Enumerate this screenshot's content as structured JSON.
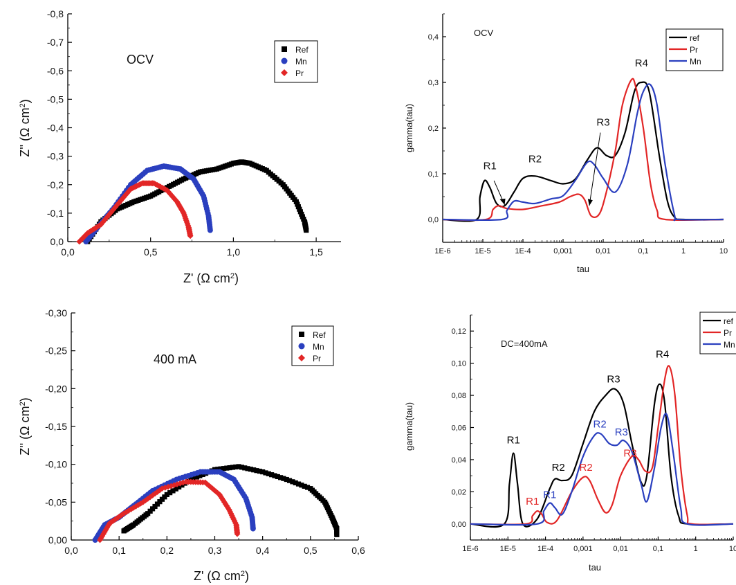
{
  "chart_data": [
    {
      "id": "nyquist_ocv",
      "type": "scatter",
      "annotation": "OCV",
      "xlabel": "Z' (Ω cm²)",
      "ylabel": "Z'' (Ω cm²)",
      "xlim": [
        0.0,
        1.65
      ],
      "ylim": [
        0.0,
        -0.8
      ],
      "x_ticks": [
        "0,0",
        "0,5",
        "1,0",
        "1,5"
      ],
      "y_ticks": [
        "0,0",
        "-0,1",
        "-0,2",
        "-0,3",
        "-0,4",
        "-0,5",
        "-0,6",
        "-0,7",
        "-0,8"
      ],
      "legend": {
        "position": "top-right"
      },
      "series": [
        {
          "name": "Ref",
          "marker": "square",
          "color": "#000000",
          "x": [
            0.12,
            0.2,
            0.3,
            0.4,
            0.5,
            0.6,
            0.7,
            0.8,
            0.9,
            1.0,
            1.05,
            1.1,
            1.2,
            1.3,
            1.38,
            1.43,
            1.44
          ],
          "y": [
            0,
            -0.07,
            -0.115,
            -0.14,
            -0.16,
            -0.19,
            -0.22,
            -0.245,
            -0.255,
            -0.275,
            -0.28,
            -0.275,
            -0.25,
            -0.2,
            -0.14,
            -0.07,
            -0.04
          ]
        },
        {
          "name": "Mn",
          "marker": "circle",
          "color": "#2a3fbf",
          "x": [
            0.11,
            0.18,
            0.28,
            0.38,
            0.48,
            0.58,
            0.68,
            0.76,
            0.82,
            0.85,
            0.86
          ],
          "y": [
            0,
            -0.05,
            -0.12,
            -0.2,
            -0.25,
            -0.265,
            -0.255,
            -0.22,
            -0.16,
            -0.09,
            -0.04
          ]
        },
        {
          "name": "Pr",
          "marker": "diamond",
          "color": "#e22626",
          "x": [
            0.07,
            0.12,
            0.2,
            0.3,
            0.38,
            0.45,
            0.52,
            0.6,
            0.66,
            0.7,
            0.73,
            0.74
          ],
          "y": [
            0,
            -0.03,
            -0.06,
            -0.13,
            -0.185,
            -0.205,
            -0.205,
            -0.18,
            -0.14,
            -0.1,
            -0.05,
            -0.02
          ]
        }
      ]
    },
    {
      "id": "drt_ocv",
      "type": "line",
      "annotation": "OCV",
      "xlabel": "tau",
      "ylabel": "gamma(tau)",
      "xscale": "log",
      "xlim": [
        1e-06,
        10
      ],
      "ylim": [
        -0.05,
        0.45
      ],
      "x_ticks": [
        "1E-6",
        "1E-5",
        "1E-4",
        "0,001",
        "0,01",
        "0,1",
        "1",
        "10"
      ],
      "y_ticks": [
        "0,0",
        "0,1",
        "0,2",
        "0,3",
        "0,4"
      ],
      "legend": {
        "position": "top-right"
      },
      "peak_labels": [
        {
          "text": "R1",
          "tau": 1.5e-05,
          "gamma": 0.11
        },
        {
          "text": "R2",
          "tau": 0.0002,
          "gamma": 0.125
        },
        {
          "text": "R3",
          "tau": 0.01,
          "gamma": 0.205
        },
        {
          "text": "R4",
          "tau": 0.09,
          "gamma": 0.335
        }
      ],
      "series": [
        {
          "name": "ref",
          "color": "#000000",
          "x": [
            1e-06,
            7e-06,
            8.5e-06,
            1.1e-05,
            1.5e-05,
            2.2e-05,
            3.5e-05,
            6e-05,
            0.0001,
            0.0002,
            0.0005,
            0.001,
            0.002,
            0.004,
            0.007,
            0.012,
            0.02,
            0.035,
            0.06,
            0.09,
            0.14,
            0.25,
            0.4,
            0.6,
            1,
            10
          ],
          "y": [
            0,
            0,
            0.05,
            0.085,
            0.07,
            0.035,
            0.03,
            0.06,
            0.09,
            0.095,
            0.085,
            0.078,
            0.088,
            0.13,
            0.157,
            0.14,
            0.14,
            0.19,
            0.28,
            0.3,
            0.28,
            0.14,
            0.04,
            0.005,
            0,
            0
          ]
        },
        {
          "name": "Pr",
          "color": "#e22626",
          "x": [
            1e-06,
            1.2e-05,
            1.8e-05,
            2.5e-05,
            4e-05,
            0.0001,
            0.0003,
            0.0008,
            0.0015,
            0.0025,
            0.0035,
            0.005,
            0.008,
            0.012,
            0.02,
            0.03,
            0.05,
            0.065,
            0.1,
            0.15,
            0.22,
            0.35,
            10
          ],
          "y": [
            0,
            0,
            0.022,
            0.03,
            0.024,
            0.022,
            0.03,
            0.038,
            0.05,
            0.055,
            0.042,
            0.008,
            0.012,
            0.06,
            0.15,
            0.25,
            0.305,
            0.29,
            0.2,
            0.08,
            0.02,
            0,
            0
          ]
        },
        {
          "name": "Mn",
          "color": "#2a3fbf",
          "x": [
            1e-06,
            3e-05,
            4e-05,
            6e-05,
            0.0001,
            0.0002,
            0.0005,
            0.001,
            0.002,
            0.004,
            0.006,
            0.01,
            0.02,
            0.04,
            0.07,
            0.1,
            0.15,
            0.22,
            0.35,
            0.6,
            0.75,
            10
          ],
          "y": [
            0,
            0,
            0.02,
            0.04,
            0.038,
            0.035,
            0.045,
            0.052,
            0.085,
            0.125,
            0.12,
            0.09,
            0.06,
            0.12,
            0.23,
            0.28,
            0.295,
            0.25,
            0.12,
            0.01,
            0,
            0
          ]
        }
      ]
    },
    {
      "id": "nyquist_400",
      "type": "scatter",
      "annotation": "400 mA",
      "xlabel": "Z' (Ω cm²)",
      "ylabel": "Z'' (Ω cm²)",
      "xlim": [
        0.0,
        0.6
      ],
      "ylim": [
        0.0,
        -0.3
      ],
      "x_ticks": [
        "0,0",
        "0,1",
        "0,2",
        "0,3",
        "0,4",
        "0,5",
        "0,6"
      ],
      "y_ticks": [
        "0,00",
        "-0,05",
        "-0,10",
        "-0,15",
        "-0,20",
        "-0,25",
        "-0,30"
      ],
      "legend": {
        "position": "top-right"
      },
      "series": [
        {
          "name": "Ref",
          "marker": "square",
          "color": "#000000",
          "x": [
            0.11,
            0.13,
            0.16,
            0.2,
            0.25,
            0.3,
            0.35,
            0.4,
            0.45,
            0.5,
            0.53,
            0.545,
            0.555,
            0.555
          ],
          "y": [
            -0.012,
            -0.02,
            -0.035,
            -0.06,
            -0.08,
            -0.093,
            -0.097,
            -0.09,
            -0.08,
            -0.068,
            -0.05,
            -0.03,
            -0.015,
            -0.007
          ]
        },
        {
          "name": "Mn",
          "marker": "circle",
          "color": "#2a3fbf",
          "x": [
            0.05,
            0.07,
            0.1,
            0.13,
            0.17,
            0.22,
            0.27,
            0.31,
            0.34,
            0.365,
            0.378,
            0.38
          ],
          "y": [
            0,
            -0.02,
            -0.03,
            -0.045,
            -0.065,
            -0.08,
            -0.09,
            -0.09,
            -0.08,
            -0.055,
            -0.03,
            -0.015
          ]
        },
        {
          "name": "Pr",
          "marker": "diamond",
          "color": "#e22626",
          "x": [
            0.06,
            0.08,
            0.11,
            0.15,
            0.19,
            0.24,
            0.28,
            0.31,
            0.33,
            0.345,
            0.347
          ],
          "y": [
            0,
            -0.022,
            -0.035,
            -0.05,
            -0.068,
            -0.077,
            -0.076,
            -0.06,
            -0.04,
            -0.02,
            -0.008
          ]
        }
      ]
    },
    {
      "id": "drt_400",
      "type": "line",
      "annotation": "DC=400mA",
      "xlabel": "tau",
      "ylabel": "gamma(tau)",
      "xscale": "log",
      "xlim": [
        1e-06,
        10
      ],
      "ylim": [
        -0.01,
        0.13
      ],
      "x_ticks": [
        "1E-6",
        "1E-5",
        "1E-4",
        "0,001",
        "0,01",
        "0,1",
        "1",
        "10"
      ],
      "y_ticks": [
        "0,00",
        "0,02",
        "0,04",
        "0,06",
        "0,08",
        "0,10",
        "0,12"
      ],
      "legend": {
        "position": "top-right"
      },
      "peak_labels": [
        {
          "text": "R1",
          "tau": 1.4e-05,
          "gamma": 0.05,
          "color": "#000000"
        },
        {
          "text": "R2",
          "tau": 0.00022,
          "gamma": 0.033,
          "color": "#000000"
        },
        {
          "text": "R3",
          "tau": 0.0065,
          "gamma": 0.088,
          "color": "#000000"
        },
        {
          "text": "R4",
          "tau": 0.13,
          "gamma": 0.1035,
          "color": "#000000"
        },
        {
          "text": "R1",
          "tau": 4.5e-05,
          "gamma": 0.012,
          "color": "#e22626"
        },
        {
          "text": "R1",
          "tau": 0.00013,
          "gamma": 0.016,
          "color": "#2a3fbf"
        },
        {
          "text": "R2",
          "tau": 0.0012,
          "gamma": 0.033,
          "color": "#e22626"
        },
        {
          "text": "R2",
          "tau": 0.0028,
          "gamma": 0.06,
          "color": "#2a3fbf"
        },
        {
          "text": "R3",
          "tau": 0.0105,
          "gamma": 0.055,
          "color": "#2a3fbf"
        },
        {
          "text": "R3",
          "tau": 0.018,
          "gamma": 0.042,
          "color": "#e22626"
        }
      ],
      "series": [
        {
          "name": "ref",
          "color": "#000000",
          "x": [
            1e-06,
            8e-06,
            1.1e-05,
            1.4e-05,
            1.8e-05,
            2.5e-05,
            6e-05,
            0.00013,
            0.00018,
            0.00028,
            0.0005,
            0.001,
            0.002,
            0.004,
            0.007,
            0.012,
            0.02,
            0.035,
            0.05,
            0.08,
            0.11,
            0.15,
            0.22,
            0.35,
            0.6,
            10
          ],
          "y": [
            0,
            0,
            0.025,
            0.044,
            0.025,
            0,
            0.003,
            0.022,
            0.028,
            0.027,
            0.03,
            0.05,
            0.07,
            0.08,
            0.084,
            0.075,
            0.05,
            0.026,
            0.03,
            0.075,
            0.087,
            0.075,
            0.03,
            0.005,
            0,
            0
          ]
        },
        {
          "name": "Pr",
          "color": "#e22626",
          "x": [
            1e-06,
            3e-05,
            4.5e-05,
            6e-05,
            8e-05,
            0.00011,
            0.0002,
            0.0005,
            0.001,
            0.0015,
            0.0025,
            0.004,
            0.006,
            0.01,
            0.02,
            0.03,
            0.045,
            0.07,
            0.1,
            0.15,
            0.2,
            0.28,
            0.4,
            0.6,
            0.8,
            10
          ],
          "y": [
            0,
            0,
            0.005,
            0.008,
            0.006,
            0.001,
            0.002,
            0.02,
            0.029,
            0.027,
            0.015,
            0.007,
            0.012,
            0.03,
            0.042,
            0.04,
            0.033,
            0.035,
            0.06,
            0.09,
            0.098,
            0.08,
            0.035,
            0.005,
            0,
            0
          ]
        },
        {
          "name": "Mn",
          "color": "#2a3fbf",
          "x": [
            1e-06,
            6e-05,
            9e-05,
            0.00013,
            0.00018,
            0.00028,
            0.0005,
            0.001,
            0.002,
            0.003,
            0.005,
            0.008,
            0.012,
            0.02,
            0.035,
            0.05,
            0.08,
            0.12,
            0.17,
            0.25,
            0.4,
            0.6,
            10
          ],
          "y": [
            0,
            0,
            0.008,
            0.013,
            0.01,
            0.006,
            0.02,
            0.042,
            0.055,
            0.056,
            0.05,
            0.049,
            0.052,
            0.045,
            0.025,
            0.014,
            0.035,
            0.06,
            0.068,
            0.045,
            0.01,
            0,
            0
          ]
        }
      ]
    }
  ]
}
